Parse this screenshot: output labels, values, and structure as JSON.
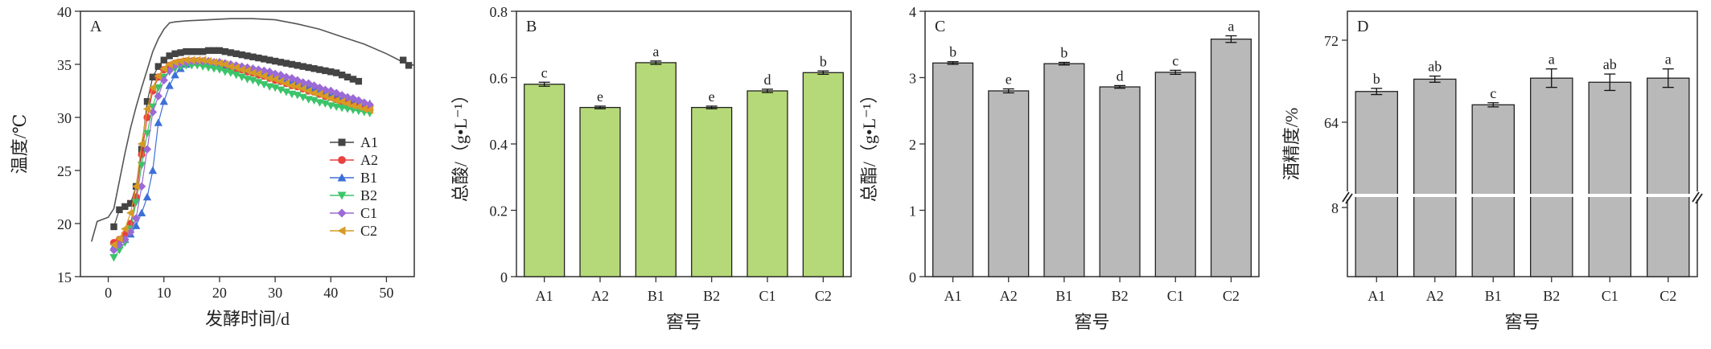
{
  "chart_data": [
    {
      "type": "line",
      "panel": "A",
      "xlabel": "发酵时间/d",
      "ylabel": "温度/℃",
      "xlim": [
        -5,
        55
      ],
      "ylim": [
        15,
        40
      ],
      "xticks": [
        0,
        10,
        20,
        30,
        40,
        50
      ],
      "yticks": [
        15,
        20,
        25,
        30,
        35,
        40
      ],
      "legend_position": "bottom-right",
      "colors": {
        "ambient": "#555555",
        "A1": "#444444",
        "A2": "#e8413e",
        "B1": "#3d6fd8",
        "B2": "#3cc46a",
        "C1": "#9b6ad6",
        "C2": "#d79b25"
      },
      "ambient": {
        "x": [
          -3,
          -2,
          -1,
          0,
          1,
          2,
          3,
          4,
          5,
          6,
          7,
          8,
          9,
          10,
          11,
          12,
          14,
          18,
          22,
          26,
          30,
          34,
          38,
          42,
          46,
          50,
          53,
          55
        ],
        "values": [
          18.3,
          20.2,
          20.4,
          20.6,
          21.4,
          24.0,
          26.6,
          29.0,
          31.0,
          32.8,
          34.5,
          36.2,
          37.4,
          38.3,
          38.9,
          39.0,
          39.1,
          39.2,
          39.3,
          39.3,
          39.2,
          38.8,
          38.3,
          37.6,
          36.9,
          36.0,
          35.2,
          34.9
        ]
      },
      "series": [
        {
          "name": "A1",
          "marker": "square",
          "x": [
            1,
            2,
            3,
            4,
            5,
            6,
            7,
            8,
            9,
            10,
            11,
            12,
            13,
            14,
            15,
            16,
            17,
            18,
            19,
            20,
            21,
            22,
            23,
            24,
            25,
            26,
            27,
            28,
            29,
            30,
            31,
            32,
            33,
            34,
            35,
            36,
            37,
            38,
            39,
            40,
            41,
            42,
            43,
            44,
            45,
            53,
            54
          ],
          "values": [
            19.7,
            21.3,
            21.6,
            21.9,
            23.5,
            27.0,
            31.5,
            33.8,
            34.8,
            35.4,
            35.8,
            36.0,
            36.1,
            36.2,
            36.2,
            36.2,
            36.2,
            36.3,
            36.3,
            36.3,
            36.2,
            36.1,
            36.0,
            35.9,
            35.8,
            35.7,
            35.6,
            35.5,
            35.4,
            35.3,
            35.2,
            35.1,
            35.0,
            34.9,
            34.8,
            34.7,
            34.6,
            34.5,
            34.4,
            34.3,
            34.2,
            34.0,
            33.8,
            33.6,
            33.4,
            35.4,
            34.9
          ]
        },
        {
          "name": "A2",
          "marker": "circle",
          "x": [
            1,
            2,
            3,
            4,
            5,
            6,
            7,
            8,
            9,
            10,
            11,
            12,
            13,
            14,
            15,
            16,
            17,
            18,
            19,
            20,
            21,
            22,
            23,
            24,
            25,
            26,
            27,
            28,
            29,
            30,
            31,
            32,
            33,
            34,
            35,
            36,
            37,
            38,
            39,
            40,
            41,
            42,
            43,
            44,
            45,
            46,
            47
          ],
          "values": [
            18.2,
            18.5,
            19.0,
            20.0,
            22.5,
            26.5,
            30.0,
            32.5,
            33.8,
            34.5,
            34.9,
            35.1,
            35.2,
            35.3,
            35.3,
            35.3,
            35.3,
            35.2,
            35.1,
            35.0,
            34.9,
            34.8,
            34.6,
            34.5,
            34.3,
            34.2,
            34.0,
            33.9,
            33.7,
            33.5,
            33.4,
            33.2,
            33.0,
            32.9,
            32.7,
            32.5,
            32.4,
            32.2,
            32.0,
            31.9,
            31.7,
            31.5,
            31.4,
            31.2,
            31.0,
            30.9,
            30.7
          ]
        },
        {
          "name": "B1",
          "marker": "triangle",
          "x": [
            1,
            2,
            3,
            4,
            5,
            6,
            7,
            8,
            9,
            10,
            11,
            12,
            13,
            14,
            15,
            16,
            17,
            18,
            19,
            20,
            21,
            22,
            23,
            24,
            25,
            26,
            27,
            28,
            29,
            30,
            31,
            32,
            33,
            34,
            35,
            36,
            37,
            38,
            39,
            40,
            41,
            42,
            43,
            44,
            45,
            46,
            47
          ],
          "values": [
            17.8,
            18.0,
            18.5,
            19.0,
            19.8,
            21.0,
            22.5,
            25.0,
            29.5,
            31.5,
            33.0,
            34.0,
            34.6,
            35.0,
            35.2,
            35.3,
            35.3,
            35.3,
            35.2,
            35.1,
            35.0,
            34.9,
            34.8,
            34.7,
            34.5,
            34.4,
            34.3,
            34.1,
            34.0,
            33.8,
            33.7,
            33.5,
            33.4,
            33.2,
            33.1,
            32.9,
            32.8,
            32.6,
            32.5,
            32.3,
            32.2,
            32.0,
            31.9,
            31.7,
            31.6,
            31.4,
            31.3
          ]
        },
        {
          "name": "B2",
          "marker": "triangle-down",
          "x": [
            1,
            2,
            3,
            4,
            5,
            6,
            7,
            8,
            9,
            10,
            11,
            12,
            13,
            14,
            15,
            16,
            17,
            18,
            19,
            20,
            21,
            22,
            23,
            24,
            25,
            26,
            27,
            28,
            29,
            30,
            31,
            32,
            33,
            34,
            35,
            36,
            37,
            38,
            39,
            40,
            41,
            42,
            43,
            44,
            45,
            46,
            47
          ],
          "values": [
            16.8,
            17.5,
            18.2,
            19.5,
            22.0,
            25.5,
            28.5,
            31.0,
            32.8,
            33.8,
            34.3,
            34.6,
            34.8,
            34.9,
            34.9,
            34.9,
            34.8,
            34.7,
            34.6,
            34.5,
            34.3,
            34.2,
            34.0,
            33.8,
            33.6,
            33.5,
            33.3,
            33.1,
            32.9,
            32.8,
            32.6,
            32.4,
            32.2,
            32.1,
            31.9,
            31.7,
            31.6,
            31.4,
            31.3,
            31.1,
            31.0,
            30.9,
            30.8,
            30.7,
            30.6,
            30.5,
            30.4
          ]
        },
        {
          "name": "C1",
          "marker": "diamond",
          "x": [
            1,
            2,
            3,
            4,
            5,
            6,
            7,
            8,
            9,
            10,
            11,
            12,
            13,
            14,
            15,
            16,
            17,
            18,
            19,
            20,
            21,
            22,
            23,
            24,
            25,
            26,
            27,
            28,
            29,
            30,
            31,
            32,
            33,
            34,
            35,
            36,
            37,
            38,
            39,
            40,
            41,
            42,
            43,
            44,
            45,
            46,
            47
          ],
          "values": [
            17.5,
            18.0,
            18.5,
            19.2,
            20.5,
            23.5,
            27.0,
            30.5,
            32.0,
            33.5,
            34.4,
            34.9,
            35.1,
            35.2,
            35.3,
            35.3,
            35.3,
            35.3,
            35.2,
            35.2,
            35.1,
            35.0,
            34.9,
            34.8,
            34.7,
            34.6,
            34.5,
            34.4,
            34.3,
            34.1,
            34.0,
            33.8,
            33.7,
            33.5,
            33.3,
            33.2,
            33.0,
            32.8,
            32.6,
            32.5,
            32.3,
            32.1,
            31.9,
            31.8,
            31.6,
            31.4,
            31.2
          ]
        },
        {
          "name": "C2",
          "marker": "triangle-left",
          "x": [
            1,
            2,
            3,
            4,
            5,
            6,
            7,
            8,
            9,
            10,
            11,
            12,
            13,
            14,
            15,
            16,
            17,
            18,
            19,
            20,
            21,
            22,
            23,
            24,
            25,
            26,
            27,
            28,
            29,
            30,
            31,
            32,
            33,
            34,
            35,
            36,
            37,
            38,
            39,
            40,
            41,
            42,
            43,
            44,
            45,
            46,
            47
          ],
          "values": [
            18.0,
            18.6,
            19.5,
            21.0,
            23.5,
            27.5,
            30.8,
            32.8,
            33.9,
            34.6,
            35.0,
            35.2,
            35.3,
            35.4,
            35.4,
            35.4,
            35.4,
            35.3,
            35.2,
            35.1,
            35.0,
            34.8,
            34.7,
            34.5,
            34.4,
            34.2,
            34.1,
            33.9,
            33.7,
            33.6,
            33.4,
            33.2,
            33.0,
            32.9,
            32.7,
            32.5,
            32.3,
            32.2,
            32.0,
            31.8,
            31.6,
            31.5,
            31.3,
            31.1,
            31.0,
            30.8,
            30.7
          ]
        }
      ]
    },
    {
      "type": "bar",
      "panel": "B",
      "xlabel": "窖号",
      "ylabel": "总酸/（g•L⁻¹）",
      "ylim": [
        0,
        0.8
      ],
      "yticks": [
        "0",
        "0.2",
        "0.4",
        "0.6",
        "0.8"
      ],
      "bar_color": "#b5d978",
      "categories": [
        "A1",
        "A2",
        "B1",
        "B2",
        "C1",
        "C2"
      ],
      "values": [
        0.58,
        0.51,
        0.645,
        0.51,
        0.56,
        0.615
      ],
      "errors": [
        0.006,
        0.004,
        0.005,
        0.004,
        0.005,
        0.005
      ],
      "significance": [
        "c",
        "e",
        "a",
        "e",
        "d",
        "b"
      ]
    },
    {
      "type": "bar",
      "panel": "C",
      "xlabel": "窖号",
      "ylabel": "总酯/（g•L⁻¹）",
      "ylim": [
        0,
        4
      ],
      "yticks": [
        "0",
        "1",
        "2",
        "3",
        "4"
      ],
      "bar_color": "#b9b9b9",
      "categories": [
        "A1",
        "A2",
        "B1",
        "B2",
        "C1",
        "C2"
      ],
      "values": [
        3.22,
        2.8,
        3.21,
        2.86,
        3.08,
        3.58
      ],
      "errors": [
        0.02,
        0.03,
        0.02,
        0.02,
        0.03,
        0.05
      ],
      "significance": [
        "b",
        "e",
        "b",
        "d",
        "c",
        "a"
      ]
    },
    {
      "type": "bar",
      "panel": "D",
      "xlabel": "窖号",
      "ylabel": "酒精度/%",
      "axis_break": true,
      "ylim": [
        0,
        72
      ],
      "yticks": [
        "8",
        "64",
        "72"
      ],
      "bar_color": "#b9b9b9",
      "categories": [
        "A1",
        "A2",
        "B1",
        "B2",
        "C1",
        "C2"
      ],
      "values": [
        67.0,
        68.2,
        65.7,
        68.3,
        67.9,
        68.3
      ],
      "errors": [
        0.3,
        0.3,
        0.2,
        0.9,
        0.8,
        0.9
      ],
      "significance": [
        "b",
        "ab",
        "c",
        "a",
        "ab",
        "a"
      ]
    }
  ]
}
